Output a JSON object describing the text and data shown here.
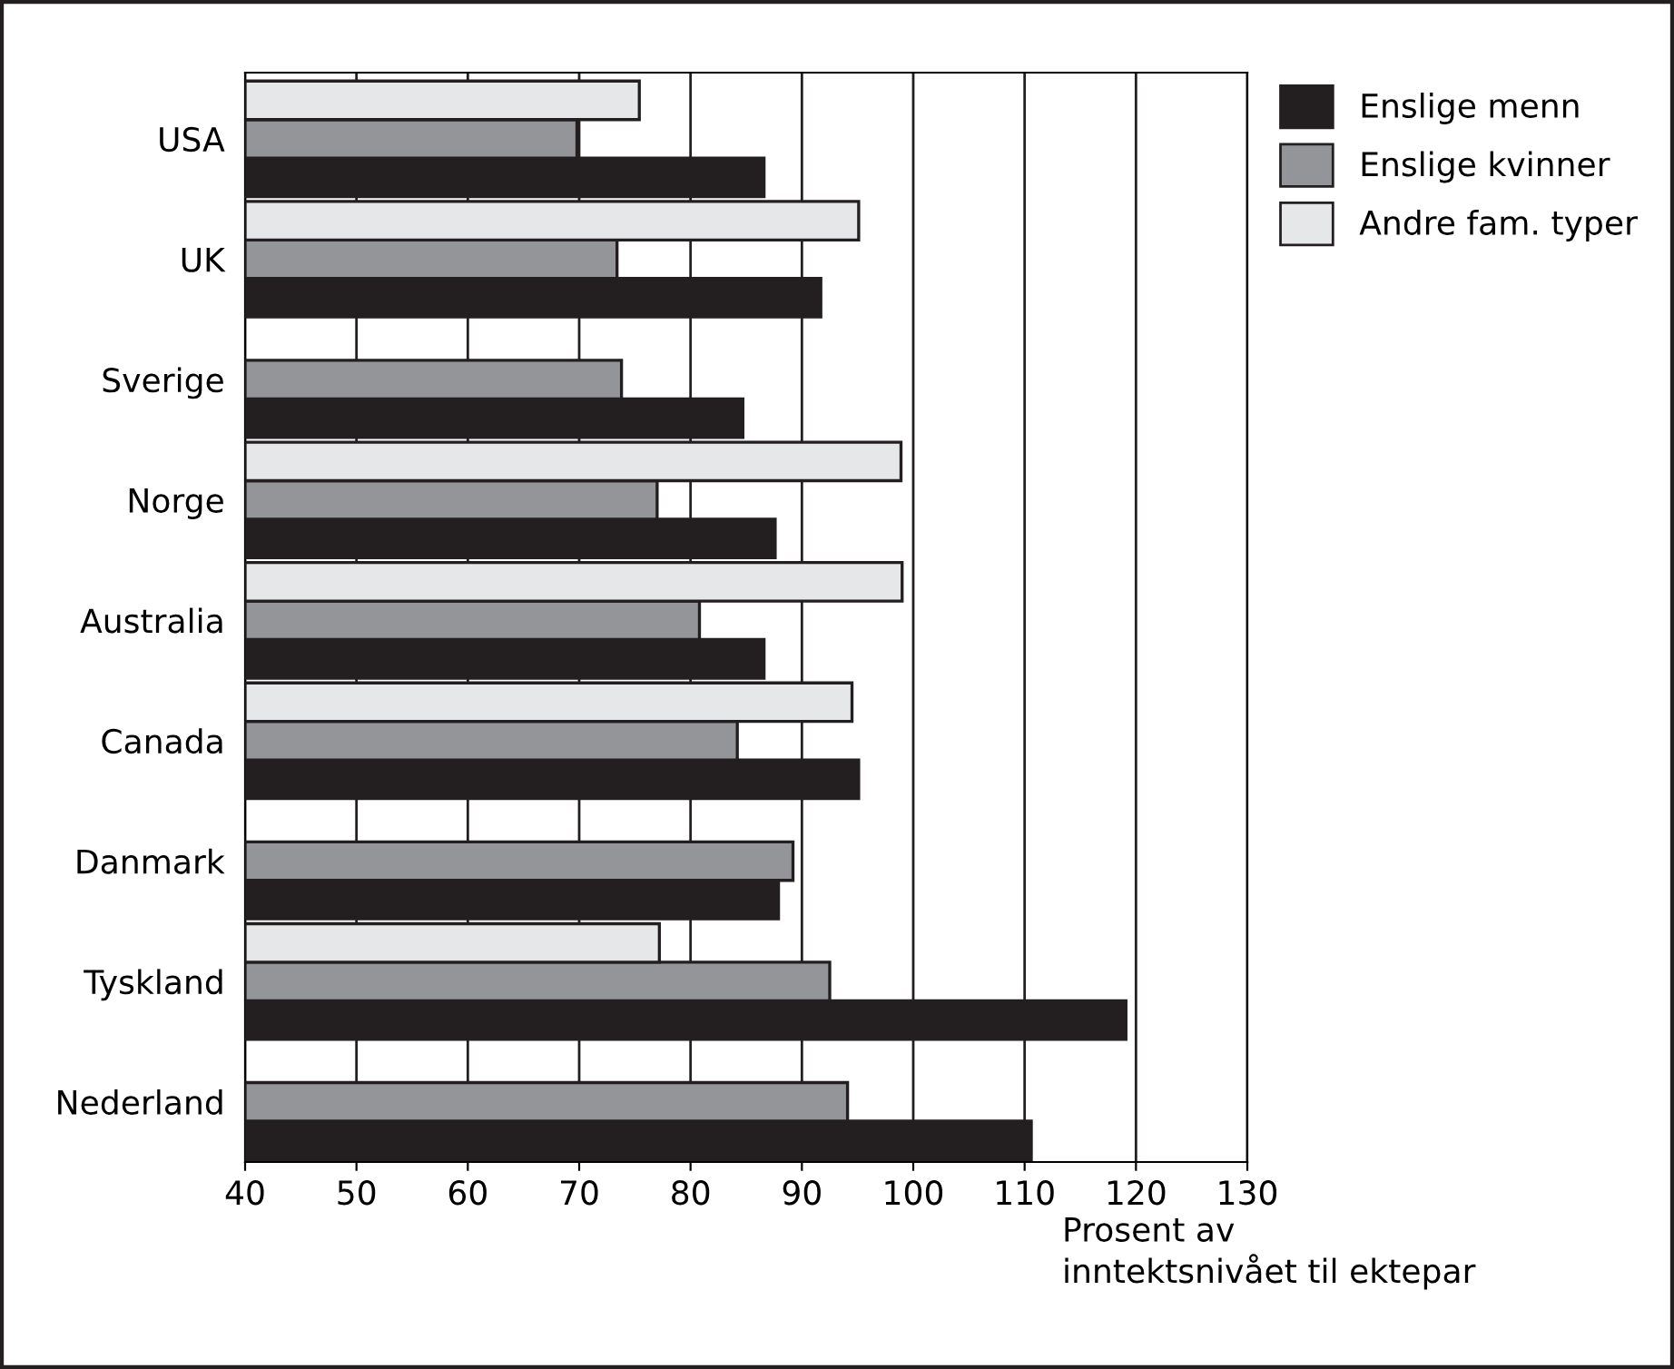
{
  "chart_data": {
    "type": "bar",
    "orientation": "horizontal",
    "xlabel": "Prosent av\ninntektsnivået til ektepar",
    "categories": [
      "USA",
      "UK",
      "Sverige",
      "Norge",
      "Australia",
      "Canada",
      "Danmark",
      "Tyskland",
      "Nederland"
    ],
    "series": [
      {
        "name": "Enslige menn",
        "color": "#231f20",
        "values": [
          86.6,
          91.7,
          84.7,
          87.6,
          86.6,
          95.1,
          87.9,
          119.1,
          110.6
        ]
      },
      {
        "name": "Enslige kvinner",
        "color": "#939598",
        "values": [
          69.8,
          73.4,
          73.8,
          77.0,
          80.8,
          84.2,
          89.2,
          92.5,
          94.1
        ]
      },
      {
        "name": "Andre fam. typer",
        "color": "#e6e7e8",
        "values": [
          75.4,
          95.1,
          null,
          98.9,
          99.0,
          94.5,
          null,
          77.2,
          null
        ]
      }
    ],
    "xlim": [
      40,
      130
    ],
    "xticks": [
      40,
      50,
      60,
      70,
      80,
      90,
      100,
      110,
      120,
      130
    ],
    "grid": "x",
    "legend": "top right"
  }
}
